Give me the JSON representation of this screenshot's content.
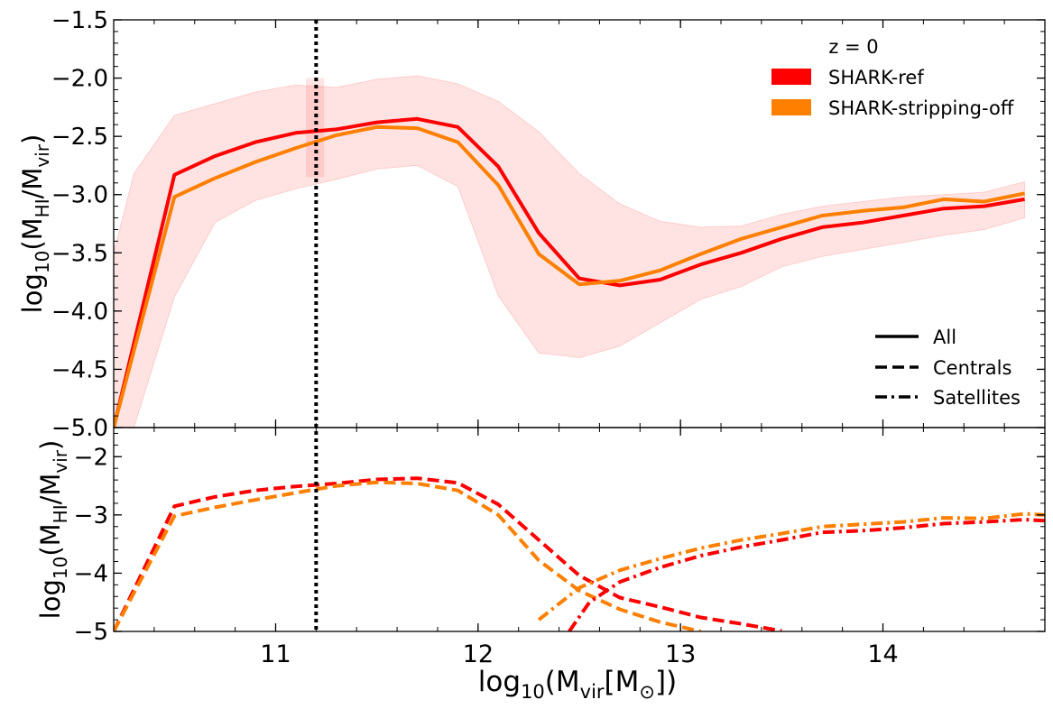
{
  "chart_data": [
    {
      "type": "line",
      "panel": "top",
      "ylabel_main": "log",
      "ylabel_sub": "10",
      "ylabel_open": "(M",
      "ylabel_hi": "HI",
      "ylabel_slash": "/M",
      "ylabel_vir": "vir",
      "ylabel_close": ")",
      "xlim": [
        10.2,
        14.8
      ],
      "ylim": [
        -5.0,
        -1.5
      ],
      "yticks": [
        -5.0,
        -4.5,
        -4.0,
        -3.5,
        -3.0,
        -2.5,
        -2.0,
        -1.5
      ],
      "ytick_labels": [
        "−5.0",
        "−4.5",
        "−4.0",
        "−3.5",
        "−3.0",
        "−2.5",
        "−2.0",
        "−1.5"
      ],
      "annotation": "z = 0",
      "vline_x": 11.2,
      "band": {
        "x": [
          10.2,
          10.3,
          10.5,
          10.7,
          10.9,
          11.1,
          11.3,
          11.5,
          11.7,
          11.9,
          12.1,
          12.3,
          12.5,
          12.7,
          12.9,
          13.1,
          13.3,
          13.5,
          13.7,
          13.9,
          14.1,
          14.3,
          14.5,
          14.7
        ],
        "upper": [
          -3.5,
          -2.82,
          -2.32,
          -2.22,
          -2.12,
          -2.06,
          -2.08,
          -2.01,
          -1.98,
          -2.05,
          -2.2,
          -2.46,
          -2.82,
          -3.08,
          -3.23,
          -3.28,
          -3.27,
          -3.17,
          -3.1,
          -3.06,
          -3.02,
          -3.0,
          -2.98,
          -2.89
        ],
        "lower": [
          -5.0,
          -5.0,
          -3.88,
          -3.24,
          -3.05,
          -2.95,
          -2.87,
          -2.78,
          -2.75,
          -2.93,
          -3.87,
          -4.36,
          -4.4,
          -4.3,
          -4.1,
          -3.9,
          -3.79,
          -3.62,
          -3.53,
          -3.47,
          -3.41,
          -3.35,
          -3.3,
          -3.2
        ]
      },
      "series": [
        {
          "name": "SHARK-ref",
          "color": "#ff0000",
          "style": "solid",
          "x": [
            10.2,
            10.5,
            10.7,
            10.9,
            11.1,
            11.3,
            11.5,
            11.7,
            11.9,
            12.1,
            12.3,
            12.5,
            12.7,
            12.9,
            13.1,
            13.3,
            13.5,
            13.7,
            13.9,
            14.1,
            14.3,
            14.5,
            14.7
          ],
          "y": [
            -5.0,
            -2.83,
            -2.67,
            -2.55,
            -2.47,
            -2.44,
            -2.38,
            -2.35,
            -2.42,
            -2.76,
            -3.33,
            -3.72,
            -3.78,
            -3.73,
            -3.6,
            -3.5,
            -3.38,
            -3.28,
            -3.24,
            -3.18,
            -3.12,
            -3.1,
            -3.04
          ]
        },
        {
          "name": "SHARK-stripping-off",
          "color": "#ff7f00",
          "style": "solid",
          "x": [
            10.2,
            10.5,
            10.7,
            10.9,
            11.1,
            11.3,
            11.5,
            11.7,
            11.9,
            12.1,
            12.3,
            12.5,
            12.7,
            12.9,
            13.1,
            13.3,
            13.5,
            13.7,
            13.9,
            14.1,
            14.3,
            14.5,
            14.7
          ],
          "y": [
            -5.0,
            -3.02,
            -2.86,
            -2.72,
            -2.6,
            -2.49,
            -2.42,
            -2.43,
            -2.55,
            -2.92,
            -3.51,
            -3.77,
            -3.74,
            -3.65,
            -3.51,
            -3.38,
            -3.28,
            -3.18,
            -3.14,
            -3.11,
            -3.04,
            -3.06,
            -2.99
          ]
        }
      ],
      "legend_colors": [
        {
          "label": "SHARK-ref",
          "color": "#ff0000"
        },
        {
          "label": "SHARK-stripping-off",
          "color": "#ff7f00"
        }
      ],
      "legend_styles": [
        {
          "label": "All",
          "style": "solid"
        },
        {
          "label": "Centrals",
          "style": "dashed"
        },
        {
          "label": "Satellites",
          "style": "dashdot"
        }
      ]
    },
    {
      "type": "line",
      "panel": "bottom",
      "ylabel_main": "log",
      "ylabel_sub": "10",
      "ylabel_open": "(M",
      "ylabel_hi": "HI",
      "ylabel_slash": "/M",
      "ylabel_vir": "vir",
      "ylabel_close": ")",
      "xlabel_main": "log",
      "xlabel_sub": "10",
      "xlabel_open": "(M",
      "xlabel_vir": "vir",
      "xlabel_bracket": "[M",
      "xlabel_sun": "⊙",
      "xlabel_close": "])",
      "xlim": [
        10.2,
        14.8
      ],
      "ylim": [
        -5.0,
        -1.5
      ],
      "xticks": [
        11,
        12,
        13,
        14
      ],
      "xtick_labels": [
        "11",
        "12",
        "13",
        "14"
      ],
      "yticks": [
        -5,
        -4,
        -3,
        -2
      ],
      "ytick_labels": [
        "−5",
        "−4",
        "−3",
        "−2"
      ],
      "vline_x": 11.2,
      "series": [
        {
          "name": "SHARK-ref Centrals",
          "color": "#ff0000",
          "style": "dashed",
          "x": [
            10.2,
            10.5,
            10.7,
            10.9,
            11.1,
            11.3,
            11.5,
            11.7,
            11.9,
            12.1,
            12.3,
            12.5,
            12.7,
            12.9,
            13.1,
            13.3,
            13.5
          ],
          "y": [
            -5.0,
            -2.85,
            -2.69,
            -2.58,
            -2.51,
            -2.46,
            -2.39,
            -2.37,
            -2.45,
            -2.82,
            -3.43,
            -4.04,
            -4.42,
            -4.58,
            -4.76,
            -4.87,
            -4.99
          ]
        },
        {
          "name": "SHARK-stripping-off Centrals",
          "color": "#ff7f00",
          "style": "dashed",
          "x": [
            10.2,
            10.5,
            10.7,
            10.9,
            11.1,
            11.3,
            11.5,
            11.7,
            11.9,
            12.1,
            12.3,
            12.5,
            12.7,
            12.9,
            13.1
          ],
          "y": [
            -5.0,
            -3.02,
            -2.87,
            -2.74,
            -2.62,
            -2.5,
            -2.44,
            -2.46,
            -2.58,
            -3.0,
            -3.78,
            -4.3,
            -4.62,
            -4.84,
            -5.0
          ]
        },
        {
          "name": "SHARK-ref Satellites",
          "color": "#ff0000",
          "style": "dashdot",
          "x": [
            12.45,
            12.55,
            12.7,
            12.9,
            13.1,
            13.3,
            13.5,
            13.7,
            13.9,
            14.1,
            14.3,
            14.5,
            14.7,
            14.8
          ],
          "y": [
            -5.0,
            -4.5,
            -4.15,
            -3.9,
            -3.7,
            -3.55,
            -3.43,
            -3.3,
            -3.27,
            -3.22,
            -3.15,
            -3.12,
            -3.08,
            -3.1
          ]
        },
        {
          "name": "SHARK-stripping-off Satellites",
          "color": "#ff7f00",
          "style": "dashdot",
          "x": [
            12.3,
            12.5,
            12.7,
            12.9,
            13.1,
            13.3,
            13.5,
            13.7,
            13.9,
            14.1,
            14.3,
            14.5,
            14.7,
            14.8
          ],
          "y": [
            -4.8,
            -4.25,
            -3.95,
            -3.75,
            -3.57,
            -3.43,
            -3.32,
            -3.2,
            -3.16,
            -3.12,
            -3.05,
            -3.06,
            -2.98,
            -3.0
          ]
        }
      ]
    }
  ]
}
